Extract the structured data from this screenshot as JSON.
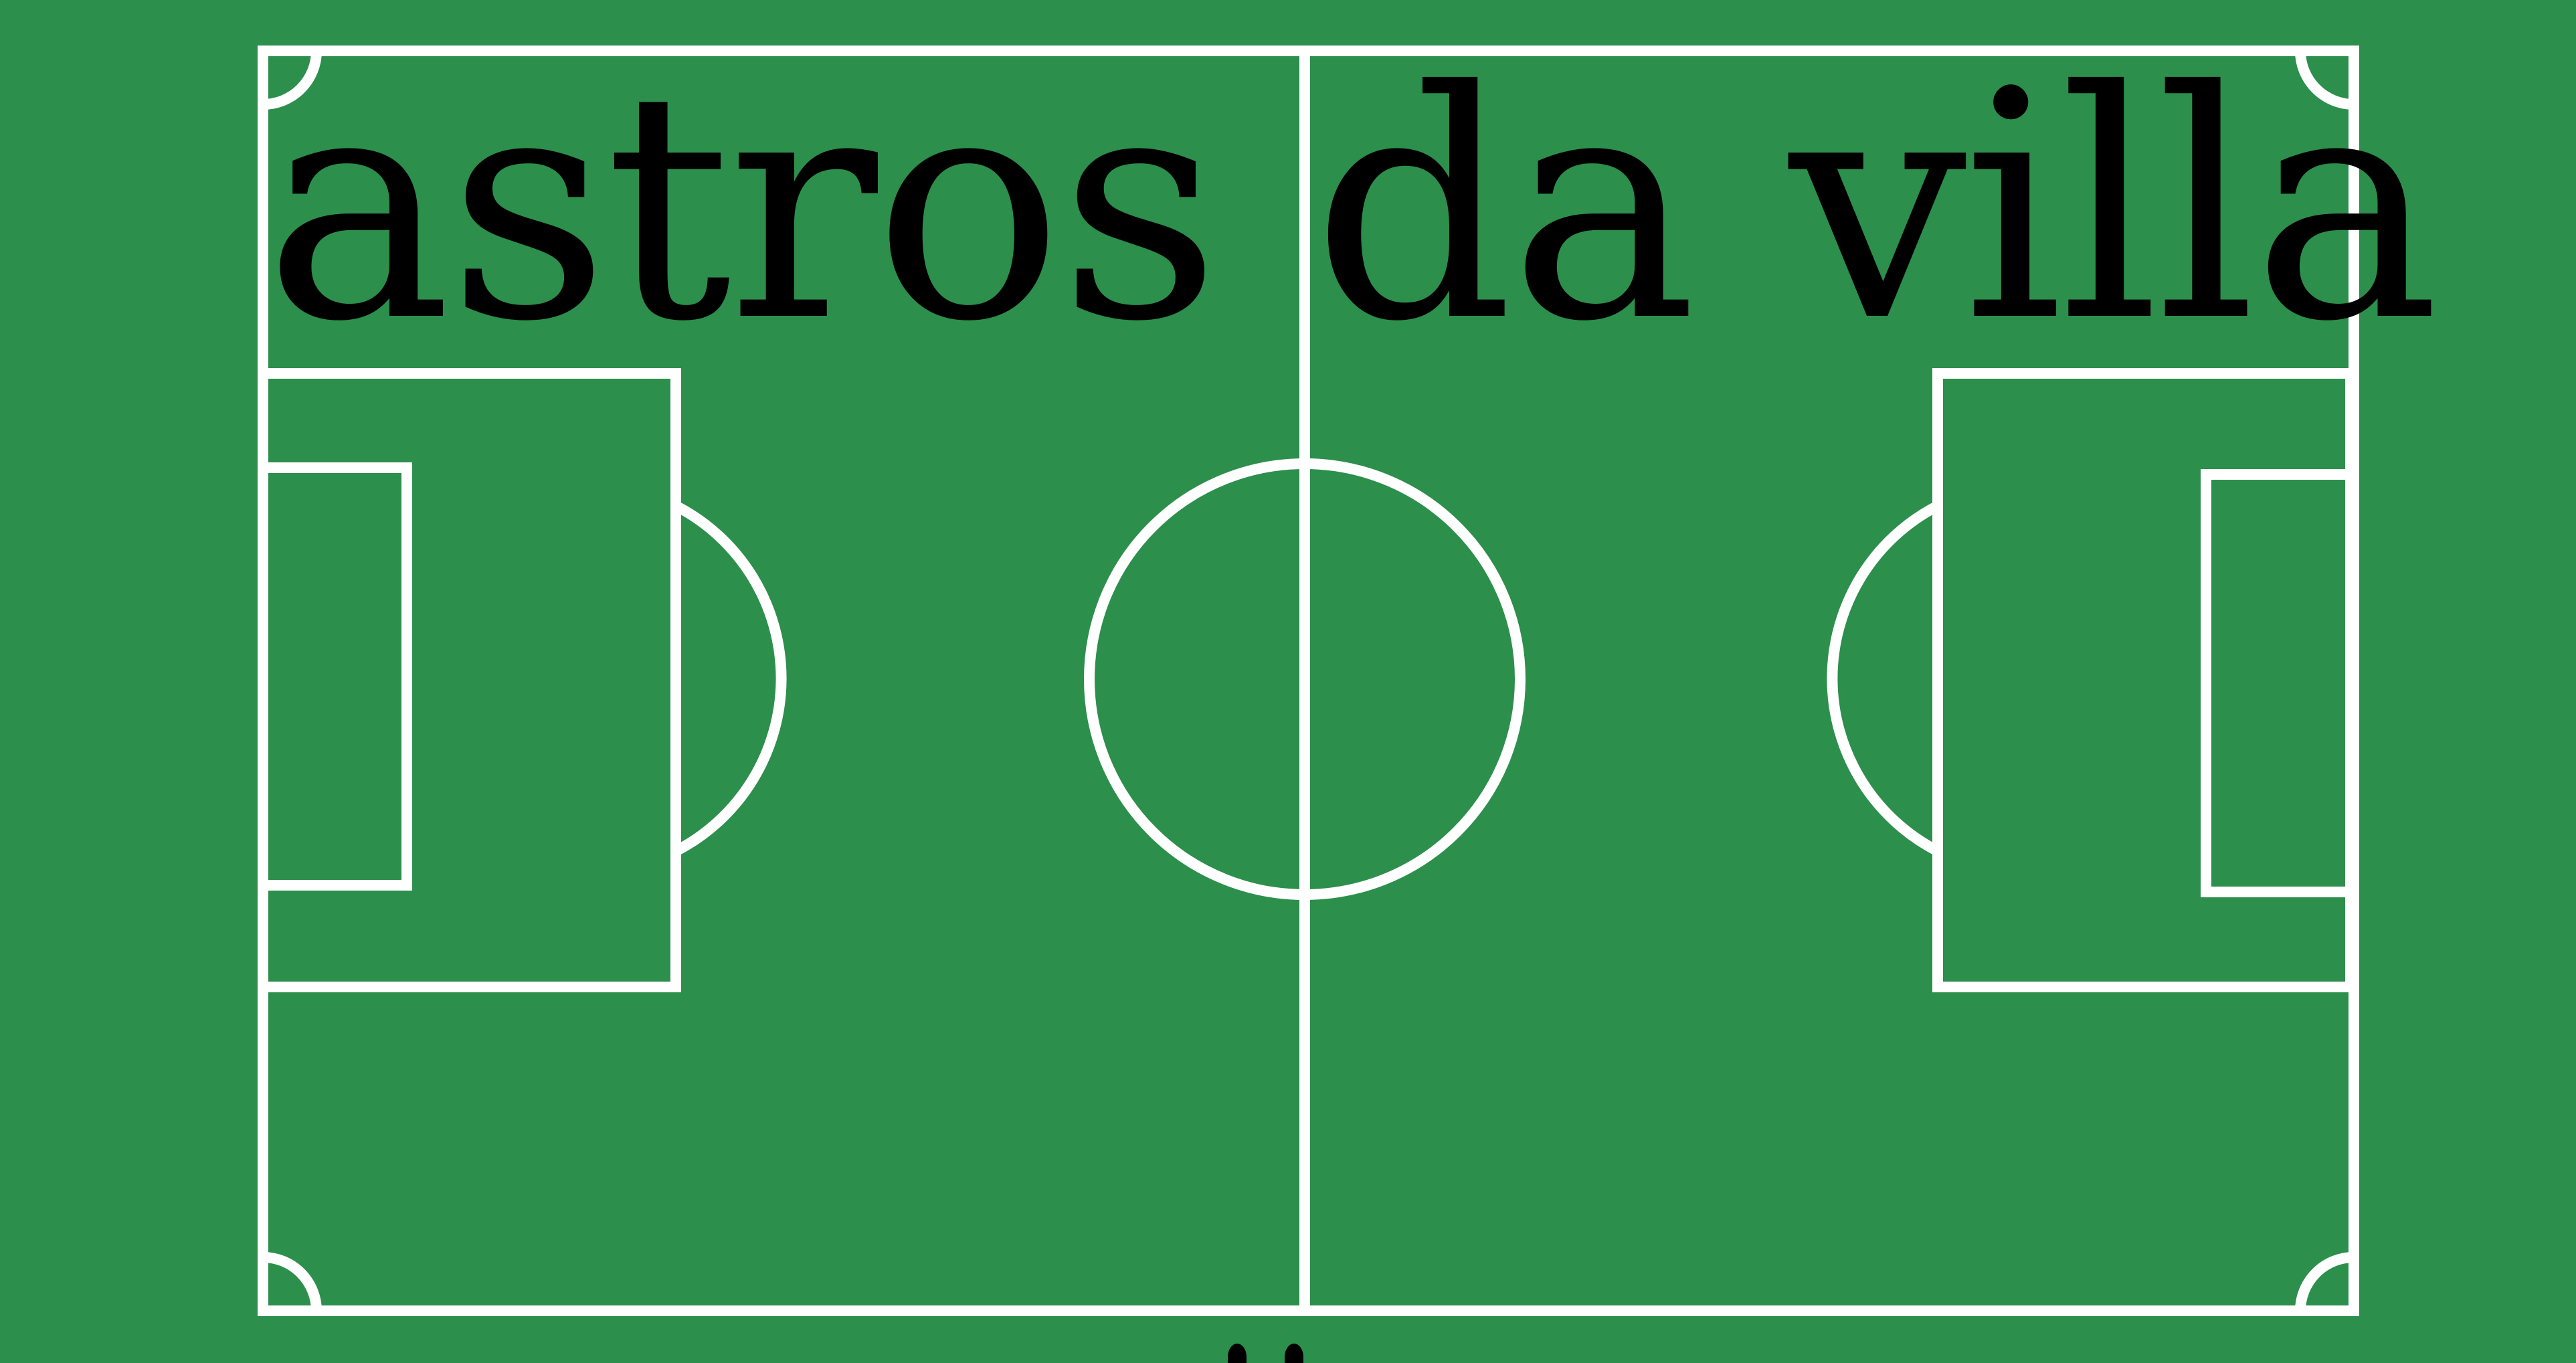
{
  "title": "astros da villa",
  "colors": {
    "grass": "#2c8f4c",
    "lines": "#ffffff",
    "title_text": "#000000"
  },
  "icons": {
    "pitch": "soccer-field-icon"
  }
}
